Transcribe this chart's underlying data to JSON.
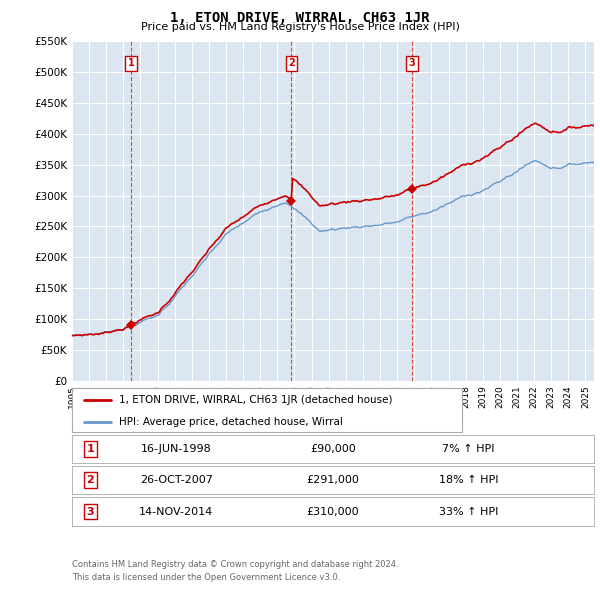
{
  "title": "1, ETON DRIVE, WIRRAL, CH63 1JR",
  "subtitle": "Price paid vs. HM Land Registry's House Price Index (HPI)",
  "legend_line1": "1, ETON DRIVE, WIRRAL, CH63 1JR (detached house)",
  "legend_line2": "HPI: Average price, detached house, Wirral",
  "footer1": "Contains HM Land Registry data © Crown copyright and database right 2024.",
  "footer2": "This data is licensed under the Open Government Licence v3.0.",
  "transactions": [
    {
      "num": 1,
      "date": "16-JUN-1998",
      "price": 90000,
      "hpi_diff": "7% ↑ HPI",
      "x_year": 1998.46
    },
    {
      "num": 2,
      "date": "26-OCT-2007",
      "price": 291000,
      "hpi_diff": "18% ↑ HPI",
      "x_year": 2007.82
    },
    {
      "num": 3,
      "date": "14-NOV-2014",
      "price": 310000,
      "hpi_diff": "33% ↑ HPI",
      "x_year": 2014.87
    }
  ],
  "ylim": [
    0,
    550000
  ],
  "yticks": [
    0,
    50000,
    100000,
    150000,
    200000,
    250000,
    300000,
    350000,
    400000,
    450000,
    500000,
    550000
  ],
  "xlim_start": 1995.0,
  "xlim_end": 2025.5,
  "bg_color": "#dce6f1",
  "red_line_color": "#cc0000",
  "blue_line_color": "#6699cc",
  "grid_color": "#ffffff",
  "dashed_line_color": "#dd4444"
}
